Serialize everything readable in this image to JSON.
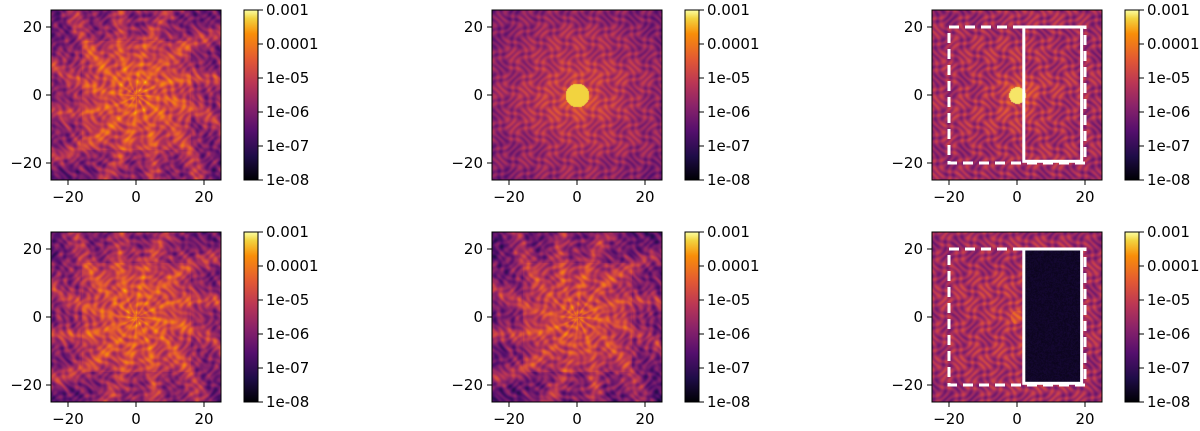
{
  "chart_data": [
    {
      "type": "heatmap",
      "panel": "row1-col1",
      "pattern": "speckle-star",
      "xlim": [
        -25,
        25
      ],
      "ylim": [
        -25,
        25
      ],
      "xticks": [
        "−20",
        "0",
        "20"
      ],
      "yticks": [
        "−20",
        "0",
        "20"
      ],
      "colorbar": {
        "scale": "log",
        "colormap": "inferno",
        "range": [
          1e-08,
          0.001
        ],
        "ticks": [
          "0.001",
          "0.0001",
          "1e-05",
          "1e-06",
          "1e-07",
          "1e-08"
        ]
      },
      "regions": []
    },
    {
      "type": "heatmap",
      "panel": "row1-col2",
      "pattern": "speckle-halo",
      "xlim": [
        -25,
        25
      ],
      "ylim": [
        -25,
        25
      ],
      "xticks": [
        "−20",
        "0",
        "20"
      ],
      "yticks": [
        "−20",
        "0",
        "20"
      ],
      "colorbar": {
        "scale": "log",
        "colormap": "inferno",
        "range": [
          1e-08,
          0.001
        ],
        "ticks": [
          "0.001",
          "0.0001",
          "1e-05",
          "1e-06",
          "1e-07",
          "1e-08"
        ]
      },
      "regions": []
    },
    {
      "type": "heatmap",
      "panel": "row1-col3",
      "pattern": "speckle-uniform",
      "xlim": [
        -25,
        25
      ],
      "ylim": [
        -25,
        25
      ],
      "xticks": [
        "−20",
        "0",
        "20"
      ],
      "yticks": [
        "−20",
        "0",
        "20"
      ],
      "colorbar": {
        "scale": "log",
        "colormap": "inferno",
        "range": [
          1e-08,
          0.001
        ],
        "ticks": [
          "0.001",
          "0.0001",
          "1e-05",
          "1e-06",
          "1e-07",
          "1e-08"
        ]
      },
      "regions": [
        {
          "style": "dashed",
          "x": [
            -20,
            20
          ],
          "y": [
            -20,
            20
          ],
          "color": "#ffffff"
        },
        {
          "style": "solid",
          "x": [
            2,
            19
          ],
          "y": [
            -19.5,
            20
          ],
          "color": "#ffffff"
        }
      ]
    },
    {
      "type": "heatmap",
      "panel": "row2-col1",
      "pattern": "speckle-star",
      "xlim": [
        -25,
        25
      ],
      "ylim": [
        -25,
        25
      ],
      "xticks": [
        "−20",
        "0",
        "20"
      ],
      "yticks": [
        "−20",
        "0",
        "20"
      ],
      "colorbar": {
        "scale": "log",
        "colormap": "inferno",
        "range": [
          1e-08,
          0.001
        ],
        "ticks": [
          "0.001",
          "0.0001",
          "1e-05",
          "1e-06",
          "1e-07",
          "1e-08"
        ]
      },
      "regions": []
    },
    {
      "type": "heatmap",
      "panel": "row2-col2",
      "pattern": "speckle-star-weak",
      "xlim": [
        -25,
        25
      ],
      "ylim": [
        -25,
        25
      ],
      "xticks": [
        "−20",
        "0",
        "20"
      ],
      "yticks": [
        "−20",
        "0",
        "20"
      ],
      "colorbar": {
        "scale": "log",
        "colormap": "inferno",
        "range": [
          1e-08,
          0.001
        ],
        "ticks": [
          "0.001",
          "0.0001",
          "1e-05",
          "1e-06",
          "1e-07",
          "1e-08"
        ]
      },
      "regions": []
    },
    {
      "type": "heatmap",
      "panel": "row2-col3",
      "pattern": "speckle-uniform-darkhole",
      "xlim": [
        -25,
        25
      ],
      "ylim": [
        -25,
        25
      ],
      "xticks": [
        "−20",
        "0",
        "20"
      ],
      "yticks": [
        "−20",
        "0",
        "20"
      ],
      "colorbar": {
        "scale": "log",
        "colormap": "inferno",
        "range": [
          1e-08,
          0.001
        ],
        "ticks": [
          "0.001",
          "0.0001",
          "1e-05",
          "1e-06",
          "1e-07",
          "1e-08"
        ]
      },
      "regions": [
        {
          "style": "dashed",
          "x": [
            -20,
            20
          ],
          "y": [
            -20,
            20
          ],
          "color": "#ffffff"
        },
        {
          "style": "solid",
          "x": [
            2,
            19
          ],
          "y": [
            -19.5,
            20
          ],
          "color": "#ffffff"
        }
      ]
    }
  ]
}
